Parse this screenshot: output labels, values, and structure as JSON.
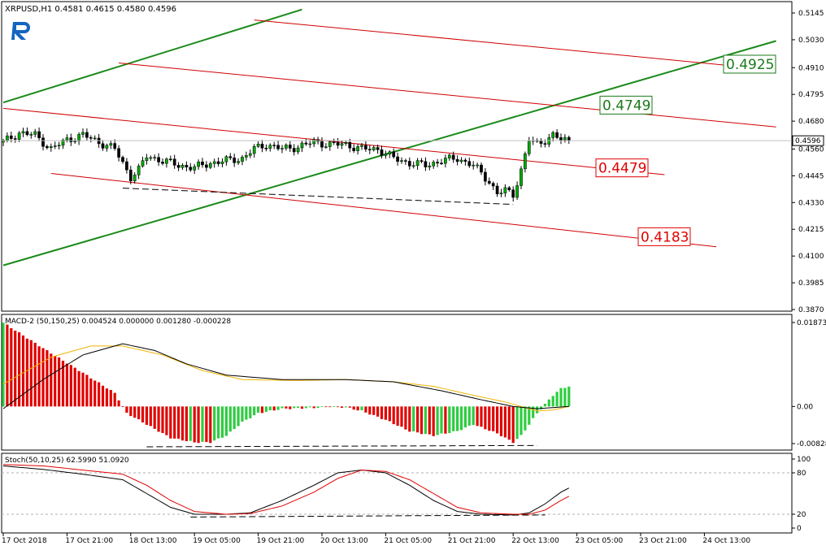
{
  "chart_data": [
    {
      "type": "candlestick",
      "title": "XRPUSD,H1  0.4581 0.4615 0.4580 0.4596",
      "ohlc": {
        "open": 0.4581,
        "high": 0.4615,
        "low": 0.458,
        "close": 0.4596
      },
      "current_price": 0.4596,
      "ylim": [
        0.387,
        0.5145
      ],
      "yticks": [
        0.5145,
        0.503,
        0.491,
        0.4795,
        0.468,
        0.456,
        0.4445,
        0.433,
        0.4215,
        0.41,
        0.3985,
        0.387
      ],
      "close_path": [
        [
          0,
          0.459
        ],
        [
          4,
          0.463
        ],
        [
          8,
          0.462
        ],
        [
          12,
          0.456
        ],
        [
          16,
          0.46
        ],
        [
          20,
          0.462
        ],
        [
          24,
          0.459
        ],
        [
          28,
          0.456
        ],
        [
          30,
          0.45
        ],
        [
          32,
          0.444
        ],
        [
          34,
          0.447
        ],
        [
          36,
          0.453
        ],
        [
          40,
          0.451
        ],
        [
          44,
          0.449
        ],
        [
          48,
          0.448
        ],
        [
          52,
          0.45
        ],
        [
          56,
          0.451
        ],
        [
          60,
          0.452
        ],
        [
          63,
          0.456
        ],
        [
          66,
          0.458
        ],
        [
          70,
          0.456
        ],
        [
          74,
          0.457
        ],
        [
          78,
          0.459
        ],
        [
          82,
          0.458
        ],
        [
          86,
          0.458
        ],
        [
          90,
          0.456
        ],
        [
          94,
          0.456
        ],
        [
          98,
          0.452
        ],
        [
          102,
          0.45
        ],
        [
          106,
          0.449
        ],
        [
          110,
          0.451
        ],
        [
          114,
          0.452
        ],
        [
          118,
          0.449
        ],
        [
          122,
          0.442
        ],
        [
          124,
          0.437
        ],
        [
          126,
          0.438
        ],
        [
          128,
          0.4365
        ],
        [
          130,
          0.447
        ],
        [
          132,
          0.46
        ],
        [
          134,
          0.458
        ],
        [
          136,
          0.46
        ],
        [
          138,
          0.462
        ],
        [
          140,
          0.46
        ],
        [
          142,
          0.4596
        ]
      ],
      "annotations": [
        {
          "label": "0.4925",
          "value": 0.4925,
          "color": "#1a7a1a"
        },
        {
          "label": "0.4749",
          "value": 0.4749,
          "color": "#1a7a1a"
        },
        {
          "label": "0.4479",
          "value": 0.4479,
          "color": "#e00000"
        },
        {
          "label": "0.4183",
          "value": 0.4183,
          "color": "#e00000"
        }
      ],
      "trendlines": {
        "green": [
          {
            "from": [
              0,
              0.476
            ],
            "to": [
              75,
              0.516
            ]
          },
          {
            "from": [
              0,
              0.406
            ],
            "to": [
              194,
              0.5025
            ]
          }
        ],
        "red": [
          {
            "from": [
              63,
              0.5115
            ],
            "to": [
              194,
              0.49
            ]
          },
          {
            "from": [
              29,
              0.493
            ],
            "to": [
              194,
              0.4655
            ]
          },
          {
            "from": [
              0,
              0.4735
            ],
            "to": [
              166,
              0.445
            ]
          },
          {
            "from": [
              12,
              0.4455
            ],
            "to": [
              179,
              0.414
            ]
          }
        ],
        "dashed_support": {
          "from": [
            30,
            0.4392
          ],
          "to": [
            128,
            0.4322
          ]
        }
      }
    },
    {
      "type": "bar",
      "title": "MACD-2 (50,150,25) 0.004524 0.000000 0.001280 -0.000228",
      "ylim": [
        -0.00828,
        0.018736
      ],
      "yticks": [
        0.018736,
        0.0,
        -0.00828
      ],
      "ytick_labels": [
        "0.018736",
        "0.00",
        "-0.00828"
      ],
      "histogram_colors": {
        "rising": "#2ecc40",
        "falling": "#e00000"
      },
      "histogram_path": [
        [
          0,
          0.0187
        ],
        [
          10,
          0.013
        ],
        [
          20,
          0.0075
        ],
        [
          28,
          0.003
        ],
        [
          31,
          -0.0015
        ],
        [
          36,
          -0.004
        ],
        [
          42,
          -0.007
        ],
        [
          48,
          -0.008
        ],
        [
          52,
          -0.008
        ],
        [
          56,
          -0.0065
        ],
        [
          60,
          -0.0035
        ],
        [
          64,
          -0.0015
        ],
        [
          70,
          -0.0005
        ],
        [
          78,
          -0.0003
        ],
        [
          82,
          0.0
        ],
        [
          86,
          -0.0002
        ],
        [
          90,
          -0.001
        ],
        [
          96,
          -0.003
        ],
        [
          102,
          -0.0055
        ],
        [
          108,
          -0.0065
        ],
        [
          114,
          -0.0055
        ],
        [
          118,
          -0.004
        ],
        [
          124,
          -0.006
        ],
        [
          128,
          -0.008
        ],
        [
          130,
          -0.0065
        ],
        [
          132,
          -0.004
        ],
        [
          134,
          -0.0015
        ],
        [
          136,
          0.0005
        ],
        [
          138,
          0.0025
        ],
        [
          140,
          0.004
        ],
        [
          142,
          0.0045
        ]
      ],
      "macd_line_path": [
        [
          0,
          -0.0005
        ],
        [
          10,
          0.006
        ],
        [
          20,
          0.0115
        ],
        [
          30,
          0.014
        ],
        [
          38,
          0.0125
        ],
        [
          46,
          0.0095
        ],
        [
          56,
          0.007
        ],
        [
          70,
          0.006
        ],
        [
          86,
          0.006
        ],
        [
          98,
          0.0055
        ],
        [
          110,
          0.0035
        ],
        [
          120,
          0.0015
        ],
        [
          128,
          0.0
        ],
        [
          134,
          -0.0005
        ],
        [
          142,
          0.0
        ]
      ],
      "signal_line_path": [
        [
          0,
          0.005
        ],
        [
          12,
          0.011
        ],
        [
          22,
          0.0135
        ],
        [
          30,
          0.0135
        ],
        [
          40,
          0.0115
        ],
        [
          50,
          0.008
        ],
        [
          60,
          0.006
        ],
        [
          74,
          0.0058
        ],
        [
          86,
          0.006
        ],
        [
          98,
          0.0055
        ],
        [
          108,
          0.0045
        ],
        [
          118,
          0.0025
        ],
        [
          126,
          0.001
        ],
        [
          134,
          -0.001
        ],
        [
          138,
          -0.0008
        ],
        [
          142,
          0.0
        ]
      ],
      "dashed_line": {
        "from": [
          36,
          -0.009
        ],
        "to": [
          134,
          -0.0087
        ]
      }
    },
    {
      "type": "line",
      "title": "Stoch(50,10,25) 62.5990 51.0920",
      "ylim": [
        0,
        100
      ],
      "yticks": [
        100,
        80,
        20,
        0
      ],
      "levels": [
        80,
        20
      ],
      "series": [
        {
          "color": "#000000",
          "values": [
            [
              0,
              90
            ],
            [
              10,
              85
            ],
            [
              20,
              78
            ],
            [
              30,
              70
            ],
            [
              36,
              50
            ],
            [
              42,
              30
            ],
            [
              48,
              20
            ],
            [
              56,
              20
            ],
            [
              62,
              22
            ],
            [
              70,
              40
            ],
            [
              78,
              62
            ],
            [
              84,
              80
            ],
            [
              90,
              84
            ],
            [
              96,
              80
            ],
            [
              102,
              62
            ],
            [
              108,
              40
            ],
            [
              114,
              24
            ],
            [
              120,
              20
            ],
            [
              128,
              19
            ],
            [
              132,
              22
            ],
            [
              136,
              35
            ],
            [
              140,
              52
            ],
            [
              142,
              58
            ]
          ]
        },
        {
          "color": "#e00000",
          "values": [
            [
              0,
              92
            ],
            [
              10,
              90
            ],
            [
              20,
              84
            ],
            [
              30,
              78
            ],
            [
              36,
              62
            ],
            [
              42,
              40
            ],
            [
              48,
              24
            ],
            [
              56,
              20
            ],
            [
              62,
              21
            ],
            [
              70,
              32
            ],
            [
              78,
              52
            ],
            [
              84,
              72
            ],
            [
              90,
              84
            ],
            [
              96,
              82
            ],
            [
              102,
              70
            ],
            [
              108,
              50
            ],
            [
              114,
              30
            ],
            [
              120,
              22
            ],
            [
              128,
              20
            ],
            [
              132,
              20
            ],
            [
              136,
              26
            ],
            [
              140,
              40
            ],
            [
              142,
              46
            ]
          ]
        }
      ],
      "dashed_line": {
        "from": [
          47,
          16
        ],
        "to": [
          136,
          19
        ]
      }
    }
  ],
  "xaxis": {
    "labels": [
      "17 Oct 2018",
      "17 Oct 21:00",
      "18 Oct 13:00",
      "19 Oct 05:00",
      "19 Oct 21:00",
      "20 Oct 13:00",
      "21 Oct 05:00",
      "21 Oct 21:00",
      "22 Oct 13:00",
      "23 Oct 05:00",
      "23 Oct 21:00",
      "24 Oct 13:00"
    ],
    "tick_bars": [
      0,
      16,
      32,
      48,
      64,
      80,
      96,
      112,
      128,
      144,
      160,
      176
    ]
  },
  "logo": "R"
}
